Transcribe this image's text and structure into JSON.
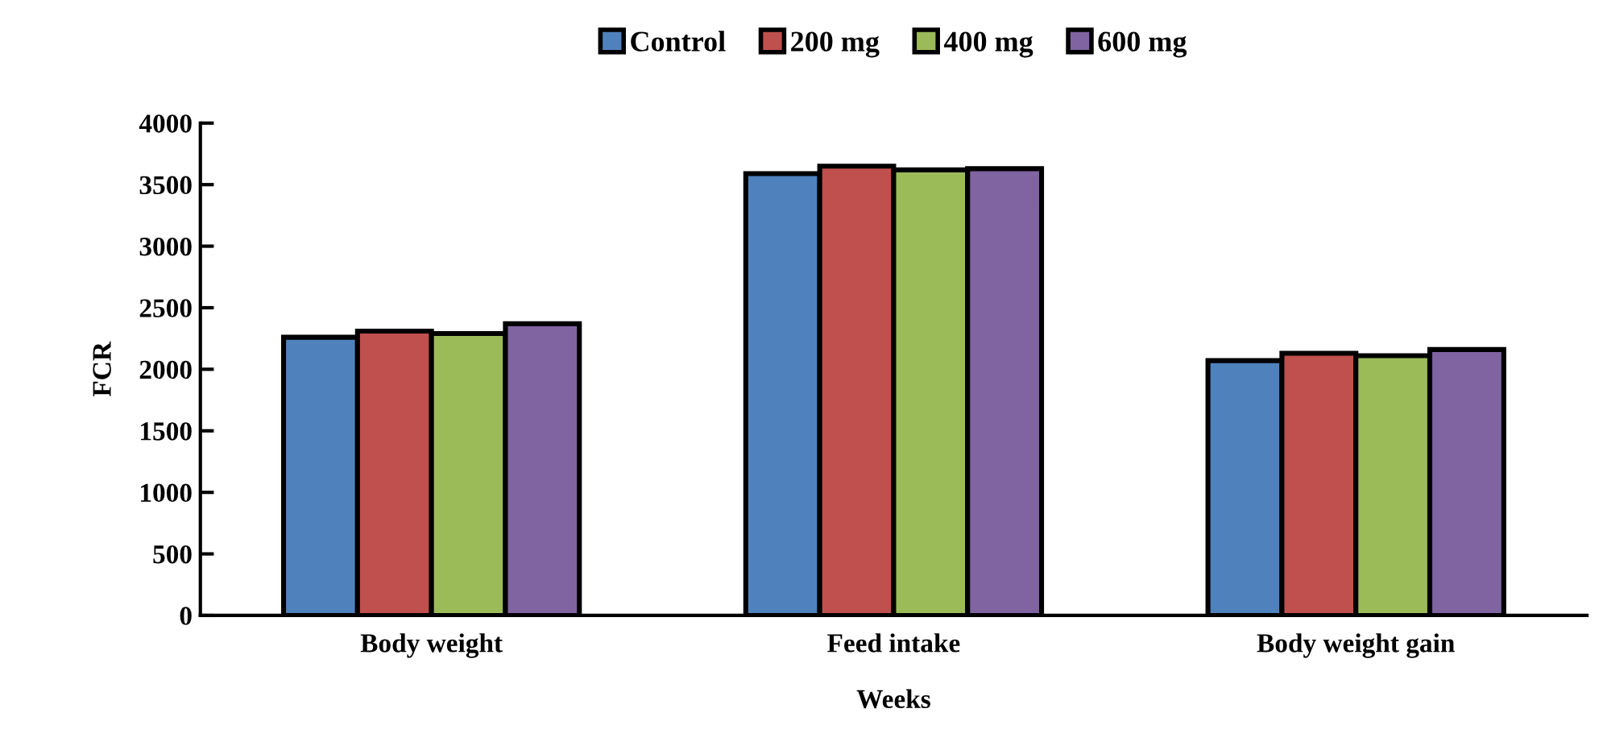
{
  "chart_data": {
    "type": "bar",
    "xlabel": "Weeks",
    "ylabel": "FCR",
    "categories": [
      "Body weight",
      "Feed intake",
      "Body weight gain"
    ],
    "series": [
      {
        "name": "Control",
        "color": "#4f81bd",
        "values": [
          2260,
          3590,
          2070
        ]
      },
      {
        "name": "200 mg",
        "color": "#c0504d",
        "values": [
          2310,
          3650,
          2130
        ]
      },
      {
        "name": "400 mg",
        "color": "#9bbb59",
        "values": [
          2290,
          3620,
          2110
        ]
      },
      {
        "name": "600 mg",
        "color": "#8064a2",
        "values": [
          2370,
          3630,
          2160
        ]
      }
    ],
    "ylim": [
      0,
      4000
    ],
    "yticks": [
      0,
      500,
      1000,
      1500,
      2000,
      2500,
      3000,
      3500,
      4000
    ],
    "grid": false,
    "legend": "top"
  }
}
